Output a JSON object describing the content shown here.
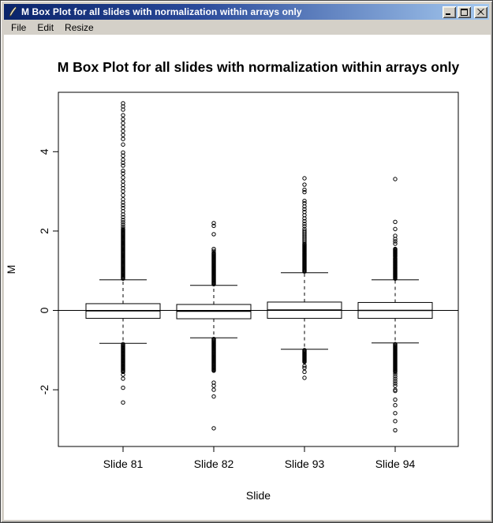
{
  "window": {
    "title": "M Box Plot for all slides with normalization within arrays only",
    "icon": "quill-icon",
    "controls": {
      "minimize": "minimize-icon",
      "maximize": "maximize-icon",
      "close": "close-icon"
    }
  },
  "menu": {
    "items": [
      {
        "label": "File"
      },
      {
        "label": "Edit"
      },
      {
        "label": "Resize"
      }
    ]
  },
  "colors": {
    "titlebar_gradient_left": "#0a246a",
    "titlebar_gradient_right": "#a6caf0",
    "chrome_gray": "#d4d0c8",
    "plot_foreground": "#000000",
    "plot_background": "#ffffff"
  },
  "chart_data": {
    "type": "boxplot",
    "title": "M Box Plot for all slides with normalization within arrays only",
    "xlabel": "Slide",
    "ylabel": "M",
    "ylim": [
      -3.4,
      5.5
    ],
    "yticks": [
      -2,
      0,
      2,
      4
    ],
    "grid": false,
    "reference_line_y": 0,
    "categories": [
      "Slide 81",
      "Slide 82",
      "Slide 93",
      "Slide 94"
    ],
    "series": [
      {
        "name": "Slide 81",
        "whisker_low": -0.83,
        "q1": -0.2,
        "median": -0.01,
        "q3": 0.17,
        "whisker_high": 0.77,
        "outliers_upper": {
          "dense": [
            [
              0.8,
              2.05,
              60
            ]
          ],
          "points": [
            2.1,
            2.16,
            2.22,
            2.28,
            2.35,
            2.42,
            2.5,
            2.58,
            2.65,
            2.72,
            2.8,
            2.9,
            3.0,
            3.08,
            3.16,
            3.25,
            3.35,
            3.45,
            3.52,
            3.65,
            3.72,
            3.8,
            3.9,
            3.98,
            4.18,
            4.32,
            4.42,
            4.52,
            4.62,
            4.72,
            4.82,
            4.92,
            5.06,
            5.14,
            5.22
          ]
        },
        "outliers_lower": {
          "dense": [
            [
              -1.55,
              -0.85,
              32
            ]
          ],
          "points": [
            -1.62,
            -1.72,
            -1.95,
            -2.32
          ]
        }
      },
      {
        "name": "Slide 82",
        "whisker_low": -0.69,
        "q1": -0.21,
        "median": -0.02,
        "q3": 0.15,
        "whisker_high": 0.63,
        "outliers_upper": {
          "dense": [
            [
              0.66,
              1.45,
              40
            ]
          ],
          "points": [
            1.5,
            1.55,
            1.92,
            2.13,
            2.2
          ]
        },
        "outliers_lower": {
          "dense": [
            [
              -1.52,
              -0.72,
              40
            ]
          ],
          "points": [
            -1.82,
            -1.9,
            -2.0,
            -2.17,
            -2.97
          ]
        }
      },
      {
        "name": "Slide 93",
        "whisker_low": -0.98,
        "q1": -0.2,
        "median": 0.01,
        "q3": 0.21,
        "whisker_high": 0.95,
        "outliers_upper": {
          "dense": [
            [
              0.98,
              1.68,
              36
            ]
          ],
          "points": [
            1.72,
            1.76,
            1.8,
            1.84,
            1.88,
            1.92,
            1.96,
            2.0,
            2.05,
            2.12,
            2.18,
            2.25,
            2.32,
            2.4,
            2.48,
            2.55,
            2.62,
            2.7,
            2.76,
            2.98,
            3.04,
            3.17,
            3.33
          ]
        },
        "outliers_lower": {
          "dense": [
            [
              -1.3,
              -1.0,
              16
            ]
          ],
          "points": [
            -1.4,
            -1.45,
            -1.55,
            -1.7
          ]
        }
      },
      {
        "name": "Slide 94",
        "whisker_low": -0.82,
        "q1": -0.2,
        "median": 0.0,
        "q3": 0.2,
        "whisker_high": 0.77,
        "outliers_upper": {
          "dense": [
            [
              0.8,
              1.32,
              28
            ],
            [
              1.35,
              1.55,
              12
            ]
          ],
          "points": [
            1.68,
            1.74,
            1.8,
            1.88,
            2.05,
            2.23,
            3.31
          ]
        },
        "outliers_lower": {
          "dense": [
            [
              -1.55,
              -0.85,
              36
            ]
          ],
          "points": [
            -1.6,
            -1.66,
            -1.72,
            -1.78,
            -1.84,
            -1.9,
            -2.0,
            -2.03,
            -2.25,
            -2.39,
            -2.59,
            -2.79,
            -3.02
          ]
        }
      }
    ]
  }
}
